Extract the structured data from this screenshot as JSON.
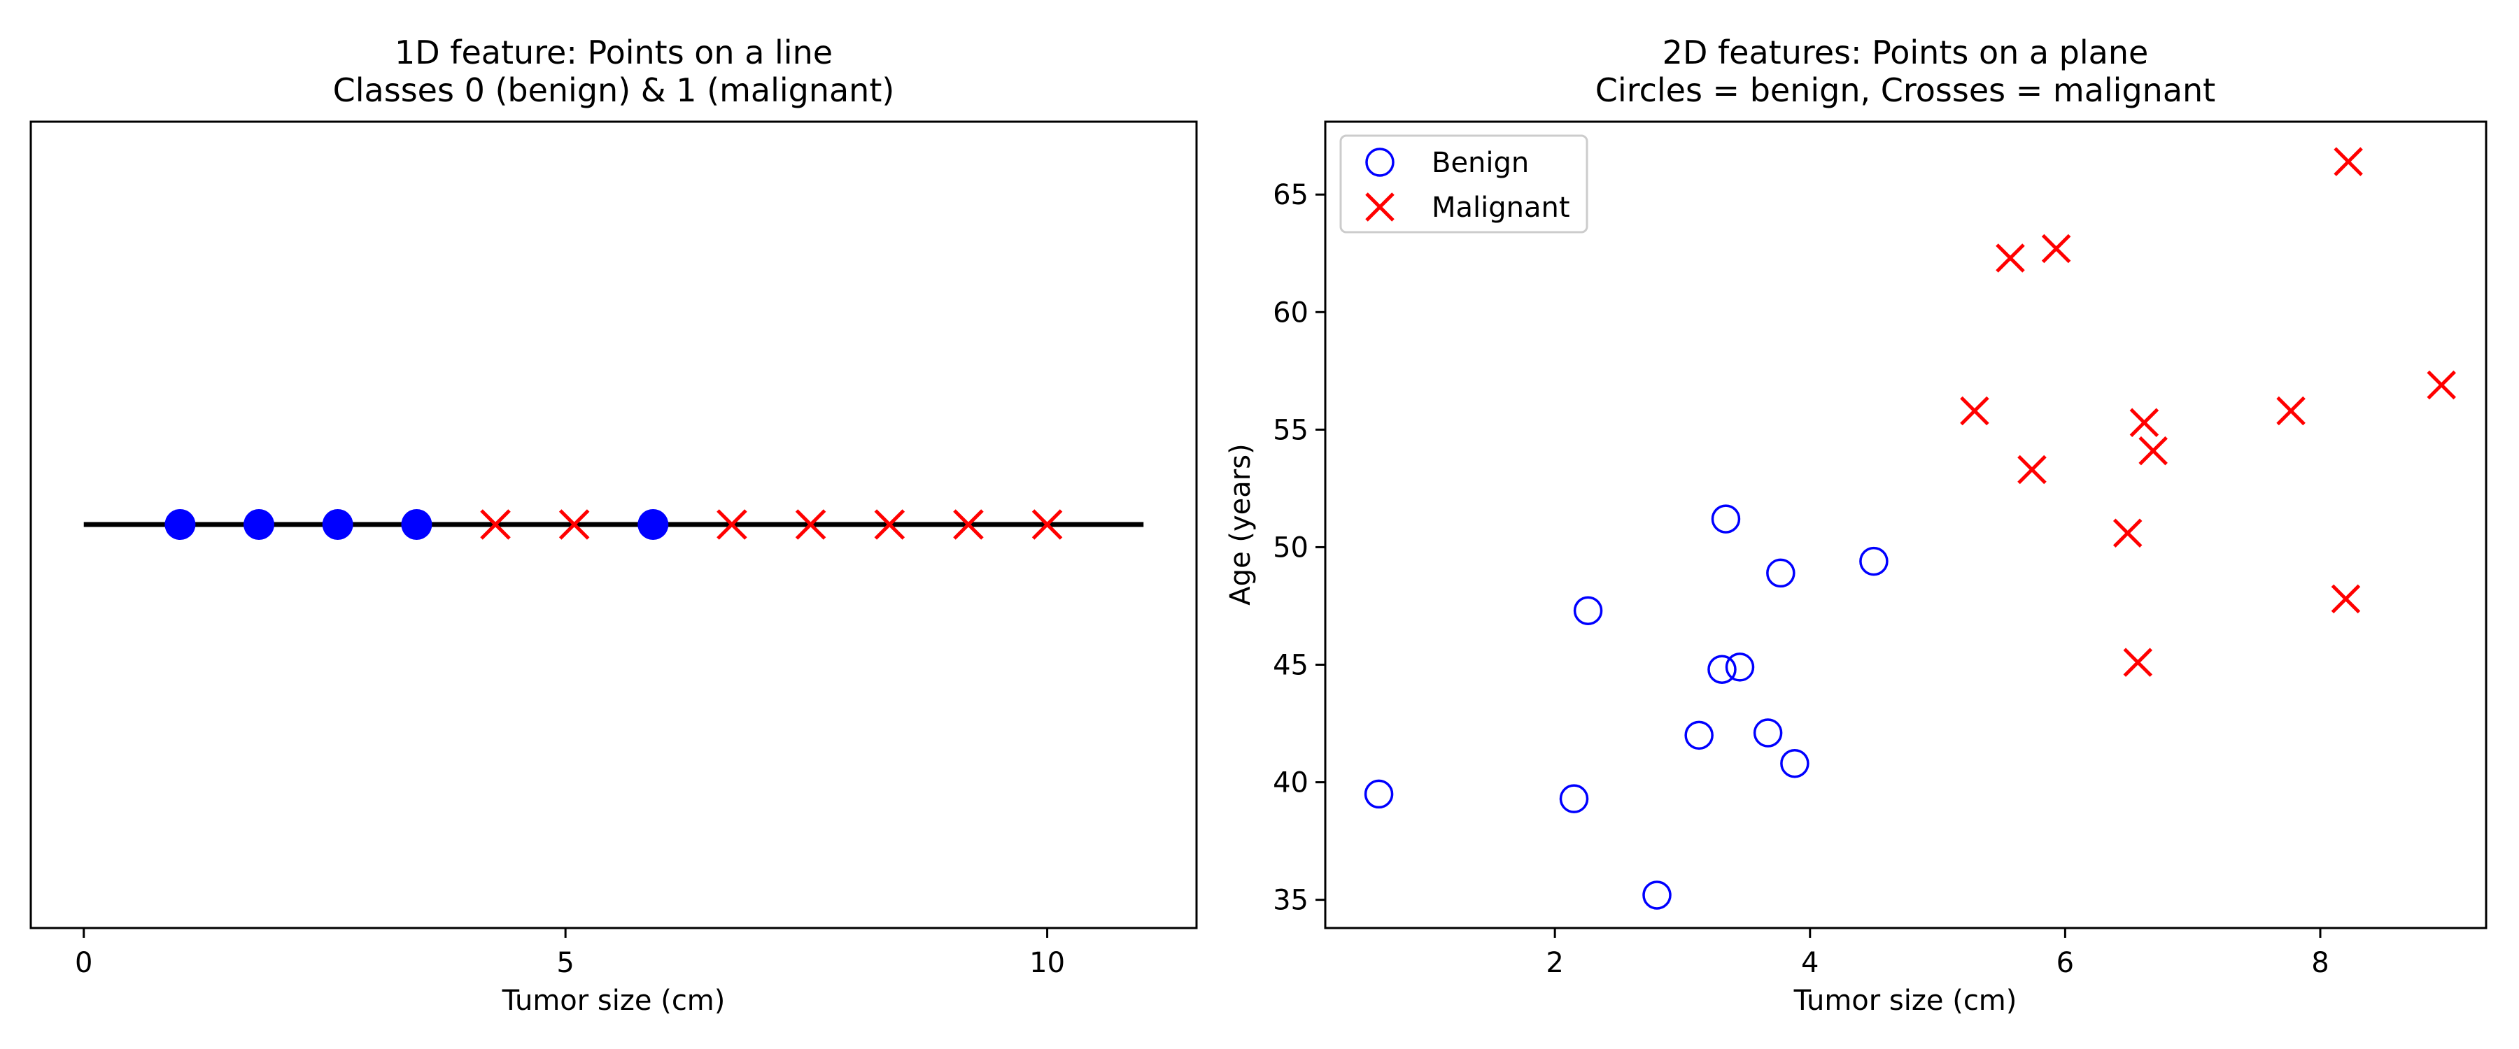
{
  "chart_data": [
    {
      "type": "scatter",
      "title": "1D feature: Points on a line\nClasses 0 (benign) & 1 (malignant)",
      "xlabel": "Tumor size (cm)",
      "ylabel": "",
      "xlim": [
        -0.55,
        11.55
      ],
      "xticks": [
        0,
        5,
        10
      ],
      "xtick_labels": [
        "0",
        "5",
        "10"
      ],
      "yticks": [],
      "grid": false,
      "legend": null,
      "baseline": {
        "x_start": 0,
        "x_end": 11
      },
      "series": [
        {
          "class": 0,
          "marker": "filled-circle",
          "color": "#0000ff",
          "x": [
            1.0,
            1.818,
            2.636,
            3.455,
            5.909
          ]
        },
        {
          "class": 1,
          "marker": "x",
          "color": "#ff0000",
          "x": [
            4.273,
            5.091,
            6.727,
            7.545,
            8.364,
            9.182,
            10.0
          ]
        }
      ]
    },
    {
      "type": "scatter",
      "title": "2D features: Points on a plane\nCircles = benign, Crosses = malignant",
      "xlabel": "Tumor size (cm)",
      "ylabel": "Age (years)",
      "xlim": [
        0.2,
        9.3
      ],
      "ylim": [
        33.8,
        68.1
      ],
      "xticks": [
        2,
        4,
        6,
        8
      ],
      "yticks": [
        35,
        40,
        45,
        50,
        55,
        60,
        65
      ],
      "grid": false,
      "legend": "upper-left",
      "series": [
        {
          "name": "Benign",
          "marker": "open-circle",
          "color": "#0000ff",
          "points": [
            [
              0.62,
              39.5
            ],
            [
              2.15,
              39.3
            ],
            [
              2.26,
              47.3
            ],
            [
              2.8,
              35.2
            ],
            [
              3.13,
              42.0
            ],
            [
              3.31,
              44.8
            ],
            [
              3.34,
              51.2
            ],
            [
              3.45,
              44.9
            ],
            [
              3.67,
              42.1
            ],
            [
              3.77,
              48.9
            ],
            [
              3.88,
              40.8
            ],
            [
              4.5,
              49.4
            ]
          ]
        },
        {
          "name": "Malignant",
          "marker": "x",
          "color": "#ff0000",
          "points": [
            [
              5.29,
              55.8
            ],
            [
              5.57,
              62.3
            ],
            [
              5.74,
              53.3
            ],
            [
              5.93,
              62.7
            ],
            [
              6.49,
              50.6
            ],
            [
              6.57,
              45.1
            ],
            [
              6.62,
              55.3
            ],
            [
              6.69,
              54.1
            ],
            [
              7.77,
              55.8
            ],
            [
              8.2,
              47.8
            ],
            [
              8.22,
              66.4
            ],
            [
              8.95,
              56.9
            ]
          ]
        }
      ]
    }
  ]
}
